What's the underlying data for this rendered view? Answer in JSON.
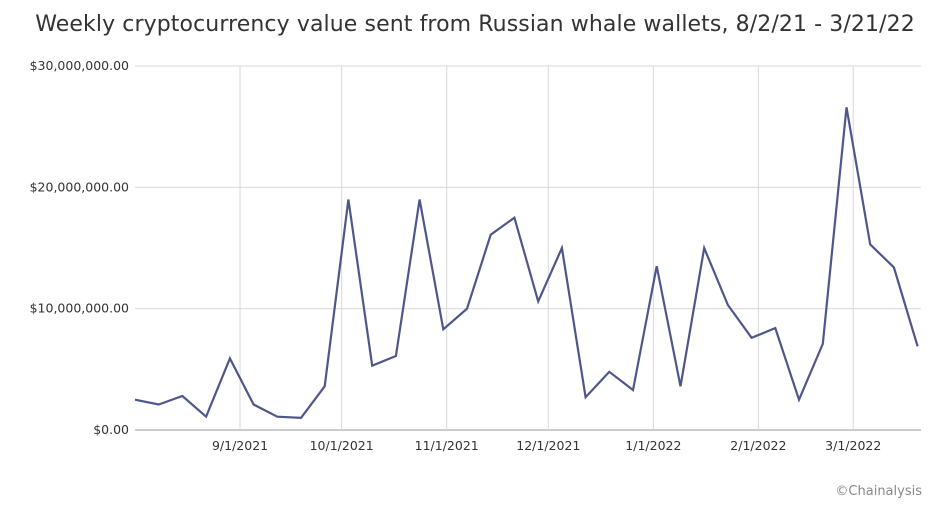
{
  "chart_data": {
    "type": "line",
    "title": "Weekly cryptocurrency value sent from Russian whale wallets, 8/2/21 - 3/21/22",
    "xlabel": "",
    "ylabel": "",
    "ylim": [
      0,
      30000000
    ],
    "y_ticks": [
      0,
      10000000,
      20000000,
      30000000
    ],
    "y_tick_labels": [
      "$0.00",
      "$10,000,000.00",
      "$20,000,000.00",
      "$30,000,000.00"
    ],
    "x_tick_labels": [
      "9/1/2021",
      "10/1/2021",
      "11/1/2021",
      "12/1/2021",
      "1/1/2022",
      "2/1/2022",
      "3/1/2022"
    ],
    "x_tick_dates": [
      "2021-09-01",
      "2021-10-01",
      "2021-11-01",
      "2021-12-01",
      "2022-01-01",
      "2022-02-01",
      "2022-03-01"
    ],
    "x_range": [
      "2021-08-01",
      "2022-03-21"
    ],
    "grid": true,
    "line_color": "#4e5789",
    "series": [
      {
        "x": [
          "2021-08-01",
          "2021-08-08",
          "2021-08-15",
          "2021-08-22",
          "2021-08-29",
          "2021-09-05",
          "2021-09-12",
          "2021-09-19",
          "2021-09-26",
          "2021-10-03",
          "2021-10-10",
          "2021-10-17",
          "2021-10-24",
          "2021-10-31",
          "2021-11-07",
          "2021-11-14",
          "2021-11-21",
          "2021-11-28",
          "2021-12-05",
          "2021-12-12",
          "2021-12-19",
          "2021-12-26",
          "2022-01-02",
          "2022-01-09",
          "2022-01-16",
          "2022-01-23",
          "2022-01-30",
          "2022-02-06",
          "2022-02-13",
          "2022-02-20",
          "2022-02-27",
          "2022-03-06",
          "2022-03-13",
          "2022-03-20"
        ],
        "values": [
          2500000,
          2100000,
          2800000,
          1100000,
          5900000,
          2100000,
          1100000,
          1000000,
          3600000,
          19000000,
          5300000,
          6100000,
          19000000,
          8300000,
          10000000,
          16100000,
          17500000,
          10600000,
          15000000,
          2700000,
          4800000,
          3300000,
          13500000,
          3600000,
          15000000,
          10300000,
          7600000,
          8400000,
          2500000,
          7100000,
          26600000,
          15300000,
          13400000,
          6900000
        ]
      }
    ]
  },
  "footer": {
    "credit": "©Chainalysis"
  }
}
